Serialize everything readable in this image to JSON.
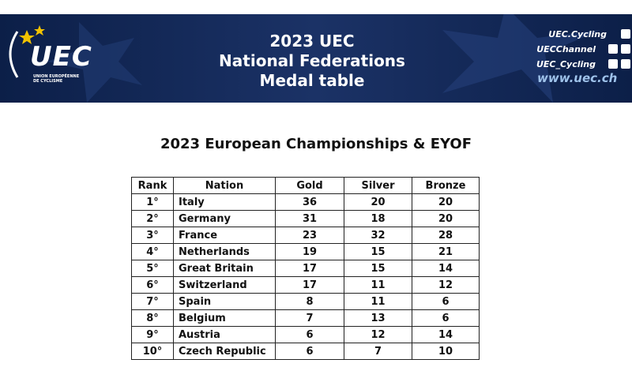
{
  "header": {
    "logo": "UEC",
    "logo_sub": [
      "UNION EUROPÉENNE",
      "DE CYCLISME"
    ],
    "title": [
      "2023 UEC",
      "National Federations",
      "Medal table"
    ],
    "social": [
      "UEC.Cycling",
      "UECChannel",
      "UEC_Cycling"
    ],
    "website": "www.uec.ch"
  },
  "subtitle": "2023 European Championships & EYOF",
  "table": {
    "columns": [
      "Rank",
      "Nation",
      "Gold",
      "Silver",
      "Bronze"
    ],
    "rows": [
      [
        "1°",
        "Italy",
        36,
        20,
        20
      ],
      [
        "2°",
        "Germany",
        31,
        18,
        20
      ],
      [
        "3°",
        "France",
        23,
        32,
        28
      ],
      [
        "4°",
        "Netherlands",
        19,
        15,
        21
      ],
      [
        "5°",
        "Great Britain",
        17,
        15,
        14
      ],
      [
        "6°",
        "Switzerland",
        17,
        11,
        12
      ],
      [
        "7°",
        "Spain",
        8,
        11,
        6
      ],
      [
        "8°",
        "Belgium",
        7,
        13,
        6
      ],
      [
        "9°",
        "Austria",
        6,
        12,
        14
      ],
      [
        "10°",
        "Czech Republic",
        6,
        7,
        10
      ]
    ]
  }
}
